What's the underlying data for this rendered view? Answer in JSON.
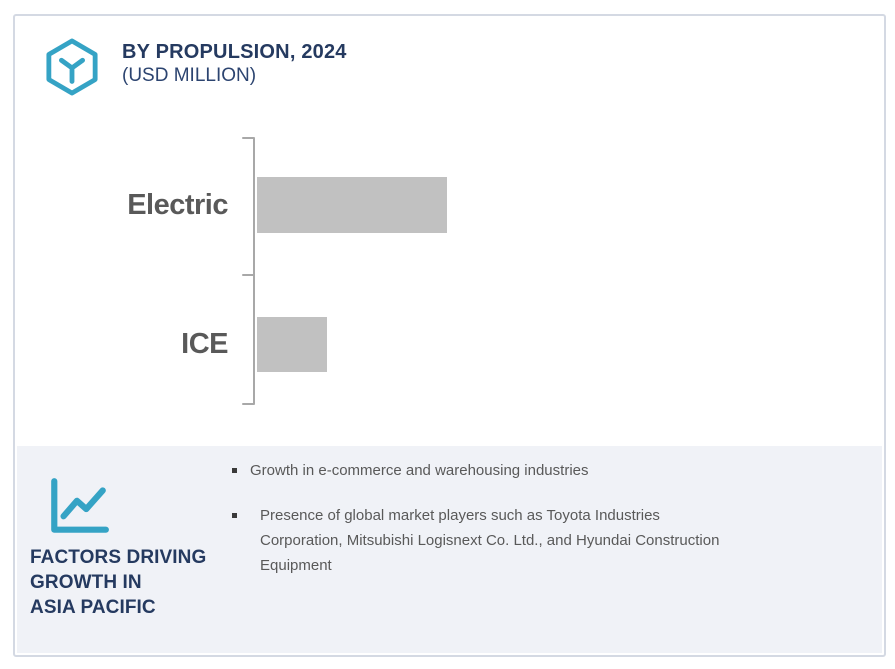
{
  "header": {
    "title": "BY PROPULSION, 2024",
    "subtitle": "(USD MILLION)",
    "icon": "cube-hexagon-icon"
  },
  "chart_data": {
    "type": "bar",
    "orientation": "horizontal",
    "title": "BY PROPULSION, 2024",
    "subtitle": "(USD MILLION)",
    "categories": [
      "Electric",
      "ICE"
    ],
    "values": [
      100,
      37
    ],
    "value_note": "no numeric axis or data labels shown; values are relative percent of the longest bar",
    "xlabel": "",
    "ylabel": "",
    "grid": false,
    "legend": false,
    "bar_color": "#c1c1c1",
    "axis_color": "#a8a8a8"
  },
  "factors": {
    "icon": "trend-line-chart-icon",
    "heading_lines": [
      "FACTORS DRIVING",
      "GROWTH IN",
      "ASIA PACIFIC"
    ],
    "bullets": [
      "Growth in e-commerce and warehousing industries",
      "Presence of global market players such as Toyota Industries Corporation, Mitsubishi Logisnext Co. Ltd., and Hyundai Construction Equipment"
    ]
  },
  "colors": {
    "accent_teal": "#35a3c5",
    "navy": "#253a60",
    "bar_gray": "#c1c1c1",
    "panel_bg": "#f0f2f7",
    "text_gray": "#595959",
    "card_border": "#d4d9e3"
  }
}
